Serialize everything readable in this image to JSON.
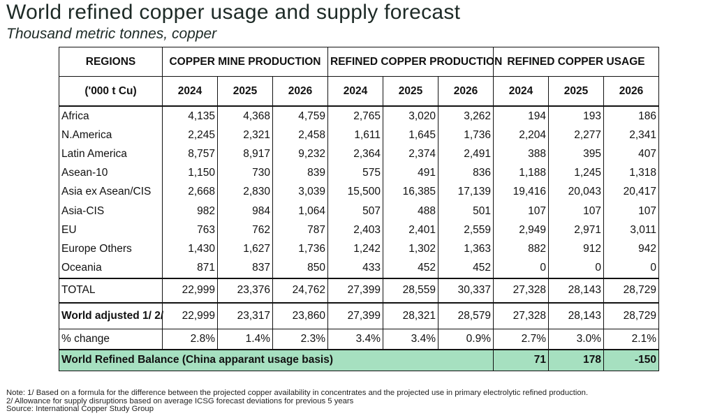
{
  "title": "World refined copper usage and supply forecast",
  "subtitle": "Thousand metric tonnes, copper",
  "table": {
    "header": {
      "regions": "REGIONS",
      "units": "('000 t Cu)",
      "groups": [
        "COPPER MINE PRODUCTION",
        "REFINED COPPER PRODUCTION",
        "REFINED COPPER USAGE"
      ],
      "years": [
        "2024",
        "2025",
        "2026",
        "2024",
        "2025",
        "2026",
        "2024",
        "2025",
        "2026"
      ]
    },
    "rows": [
      {
        "region": "Africa",
        "values": [
          "4,135",
          "4,368",
          "4,759",
          "2,765",
          "3,020",
          "3,262",
          "194",
          "193",
          "186"
        ]
      },
      {
        "region": "N.America",
        "values": [
          "2,245",
          "2,321",
          "2,458",
          "1,611",
          "1,645",
          "1,736",
          "2,204",
          "2,277",
          "2,341"
        ]
      },
      {
        "region": "Latin America",
        "values": [
          "8,757",
          "8,917",
          "9,232",
          "2,364",
          "2,374",
          "2,491",
          "388",
          "395",
          "407"
        ]
      },
      {
        "region": "Asean-10",
        "values": [
          "1,150",
          "730",
          "839",
          "575",
          "491",
          "836",
          "1,188",
          "1,245",
          "1,318"
        ]
      },
      {
        "region": "Asia ex Asean/CIS",
        "values": [
          "2,668",
          "2,830",
          "3,039",
          "15,500",
          "16,385",
          "17,139",
          "19,416",
          "20,043",
          "20,417"
        ]
      },
      {
        "region": "Asia-CIS",
        "values": [
          "982",
          "984",
          "1,064",
          "507",
          "488",
          "501",
          "107",
          "107",
          "107"
        ]
      },
      {
        "region": "EU",
        "values": [
          "763",
          "762",
          "787",
          "2,403",
          "2,401",
          "2,559",
          "2,949",
          "2,971",
          "3,011"
        ]
      },
      {
        "region": "Europe Others",
        "values": [
          "1,430",
          "1,627",
          "1,736",
          "1,242",
          "1,302",
          "1,363",
          "882",
          "912",
          "942"
        ]
      },
      {
        "region": "Oceania",
        "values": [
          "871",
          "837",
          "850",
          "433",
          "452",
          "452",
          "0",
          "0",
          "0"
        ]
      }
    ],
    "total": {
      "label": "TOTAL",
      "values": [
        "22,999",
        "23,376",
        "24,762",
        "27,399",
        "28,559",
        "30,337",
        "27,328",
        "28,143",
        "28,729"
      ]
    },
    "world_adjusted": {
      "label": "World adjusted 1/ 2/",
      "values": [
        "22,999",
        "23,317",
        "23,860",
        "27,399",
        "28,321",
        "28,579",
        "27,328",
        "28,143",
        "28,729"
      ]
    },
    "pct_change": {
      "label": "% change",
      "values": [
        "2.8%",
        "1.4%",
        "2.3%",
        "3.4%",
        "3.4%",
        "0.9%",
        "2.7%",
        "3.0%",
        "2.1%"
      ]
    },
    "balance": {
      "label": "World Refined Balance (China apparant usage basis)",
      "values": [
        "71",
        "178",
        "-150"
      ],
      "color": "#a6e0c0"
    }
  },
  "notes": [
    "Note: 1/ Based on a formula for the difference between the projected copper availability in concentrates and the projected use in primary electrolytic refined production.",
    "2/ Allowance for supply disruptions based on average ICSG forecast deviations for previous 5 years",
    "Source: International Copper Study Group"
  ]
}
